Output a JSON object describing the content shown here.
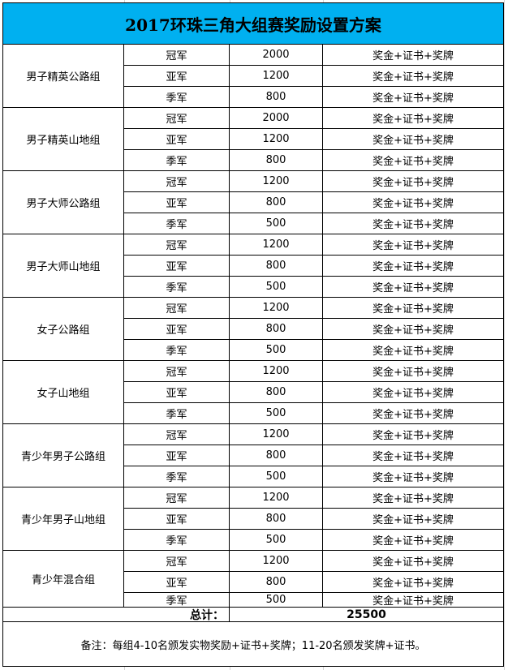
{
  "title": "2017环珠三角大组赛奖励设置方案",
  "colors": {
    "header_bg": "#00b0f0"
  },
  "groups": [
    {
      "name": "男子精英公路组",
      "rows": [
        {
          "place": "冠军",
          "amount": "2000",
          "reward": "奖金+证书+奖牌"
        },
        {
          "place": "亚军",
          "amount": "1200",
          "reward": "奖金+证书+奖牌"
        },
        {
          "place": "季军",
          "amount": "800",
          "reward": "奖金+证书+奖牌"
        }
      ]
    },
    {
      "name": "男子精英山地组",
      "rows": [
        {
          "place": "冠军",
          "amount": "2000",
          "reward": "奖金+证书+奖牌"
        },
        {
          "place": "亚军",
          "amount": "1200",
          "reward": "奖金+证书+奖牌"
        },
        {
          "place": "季军",
          "amount": "800",
          "reward": "奖金+证书+奖牌"
        }
      ]
    },
    {
      "name": "男子大师公路组",
      "rows": [
        {
          "place": "冠军",
          "amount": "1200",
          "reward": "奖金+证书+奖牌"
        },
        {
          "place": "亚军",
          "amount": "800",
          "reward": "奖金+证书+奖牌"
        },
        {
          "place": "季军",
          "amount": "500",
          "reward": "奖金+证书+奖牌"
        }
      ]
    },
    {
      "name": "男子大师山地组",
      "rows": [
        {
          "place": "冠军",
          "amount": "1200",
          "reward": "奖金+证书+奖牌"
        },
        {
          "place": "亚军",
          "amount": "800",
          "reward": "奖金+证书+奖牌"
        },
        {
          "place": "季军",
          "amount": "500",
          "reward": "奖金+证书+奖牌"
        }
      ]
    },
    {
      "name": "女子公路组",
      "rows": [
        {
          "place": "冠军",
          "amount": "1200",
          "reward": "奖金+证书+奖牌"
        },
        {
          "place": "亚军",
          "amount": "800",
          "reward": "奖金+证书+奖牌"
        },
        {
          "place": "季军",
          "amount": "500",
          "reward": "奖金+证书+奖牌"
        }
      ]
    },
    {
      "name": "女子山地组",
      "rows": [
        {
          "place": "冠军",
          "amount": "1200",
          "reward": "奖金+证书+奖牌"
        },
        {
          "place": "亚军",
          "amount": "800",
          "reward": "奖金+证书+奖牌"
        },
        {
          "place": "季军",
          "amount": "500",
          "reward": "奖金+证书+奖牌"
        }
      ]
    },
    {
      "name": "青少年男子公路组",
      "rows": [
        {
          "place": "冠军",
          "amount": "1200",
          "reward": "奖金+证书+奖牌"
        },
        {
          "place": "亚军",
          "amount": "800",
          "reward": "奖金+证书+奖牌"
        },
        {
          "place": "季军",
          "amount": "500",
          "reward": "奖金+证书+奖牌"
        }
      ]
    },
    {
      "name": "青少年男子山地组",
      "rows": [
        {
          "place": "冠军",
          "amount": "1200",
          "reward": "奖金+证书+奖牌"
        },
        {
          "place": "亚军",
          "amount": "800",
          "reward": "奖金+证书+奖牌"
        },
        {
          "place": "季军",
          "amount": "500",
          "reward": "奖金+证书+奖牌"
        }
      ]
    },
    {
      "name": "青少年混合组",
      "rows": [
        {
          "place": "冠军",
          "amount": "1200",
          "reward": "奖金+证书+奖牌"
        },
        {
          "place": "亚军",
          "amount": "800",
          "reward": "奖金+证书+奖牌"
        },
        {
          "place": "季军",
          "amount": "500",
          "reward": "奖金+证书+奖牌"
        }
      ]
    }
  ],
  "total": {
    "label": "总计：",
    "value": "25500"
  },
  "note": "备注：每组4-10名颁发实物奖励+证书+奖牌；11-20名颁发奖牌+证书。"
}
